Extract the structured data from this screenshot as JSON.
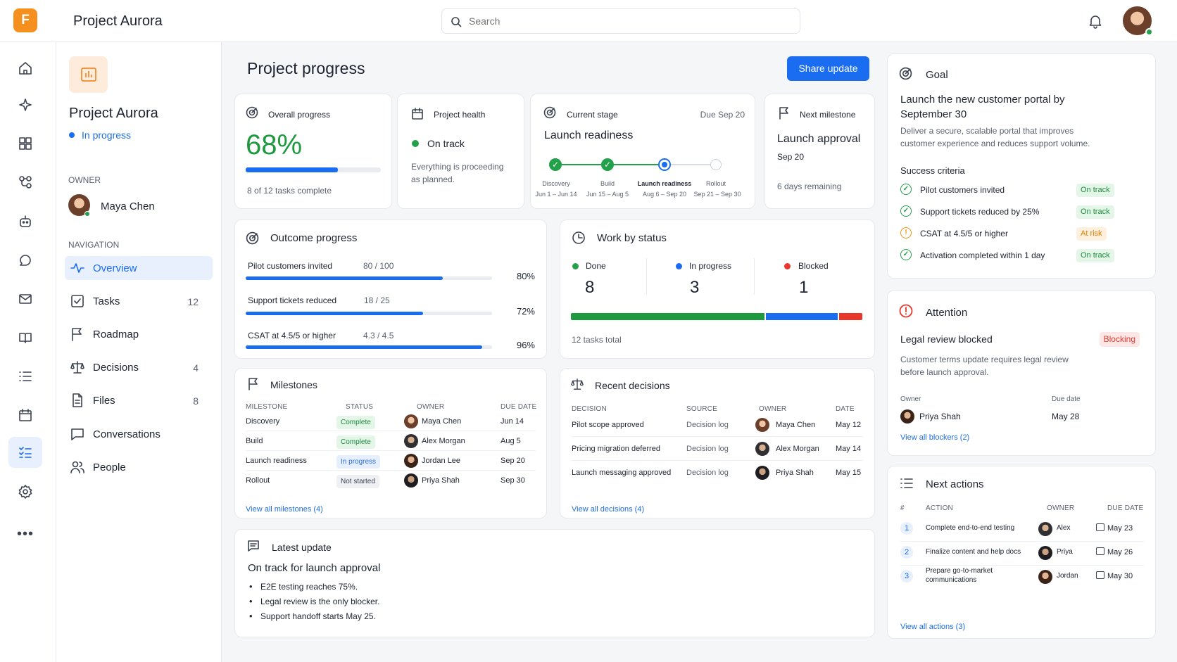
{
  "app": {
    "logo_letter": "F",
    "title": "Project Aurora",
    "accent": "#1a6df0",
    "logo_color": "#f5901e"
  },
  "search": {
    "placeholder": "Search"
  },
  "rail": [
    "home-icon",
    "sparkle-icon",
    "apps-icon",
    "flow-icon",
    "bot-icon",
    "chat-icon",
    "mail-icon",
    "book-icon",
    "list-icon",
    "calendar-icon",
    "checklist-icon",
    "settings-icon",
    "more-icon"
  ],
  "project": {
    "name": "Project Aurora",
    "status": "In progress",
    "owner_label": "OWNER",
    "owner": "Maya Chen",
    "nav_label": "NAVIGATION"
  },
  "nav": [
    {
      "label": "Overview",
      "count": "",
      "icon": "activity-icon"
    },
    {
      "label": "Tasks",
      "count": "12",
      "icon": "checkbox-icon"
    },
    {
      "label": "Roadmap",
      "count": "",
      "icon": "flag-icon"
    },
    {
      "label": "Decisions",
      "count": "4",
      "icon": "scale-icon"
    },
    {
      "label": "Files",
      "count": "8",
      "icon": "file-icon"
    },
    {
      "label": "Conversations",
      "count": "",
      "icon": "chat-icon"
    },
    {
      "label": "People",
      "count": "",
      "icon": "people-icon"
    }
  ],
  "main": {
    "title": "Project progress",
    "share": "Share update"
  },
  "overall": {
    "label": "Overall progress",
    "value": "68%",
    "progress": 0.68,
    "sub": "8 of 12 tasks complete"
  },
  "health": {
    "label": "Project health",
    "status": "On track",
    "desc1": "Everything is proceeding",
    "desc2": "as planned."
  },
  "stage": {
    "label": "Current stage",
    "due": "Due Sep 20",
    "name": "Launch readiness",
    "steps": [
      {
        "name": "Discovery",
        "dates": "Jun 1 – Jun 14"
      },
      {
        "name": "Build",
        "dates": "Jun 15 – Aug 5"
      },
      {
        "name": "Launch readiness",
        "dates": "Aug 6 – Sep 20"
      },
      {
        "name": "Rollout",
        "dates": "Sep 21 – Sep 30"
      }
    ]
  },
  "milestone": {
    "label": "Next milestone",
    "name": "Launch approval",
    "date": "Sep 20",
    "remaining": "6 days remaining"
  },
  "outcome": {
    "title": "Outcome progress",
    "items": [
      {
        "label": "Pilot customers invited",
        "ratio": "80 / 100",
        "pct": "80%",
        "progress": 0.8
      },
      {
        "label": "Support tickets reduced",
        "ratio": "18 / 25",
        "pct": "72%",
        "progress": 0.72
      },
      {
        "label": "CSAT at 4.5/5 or higher",
        "ratio": "4.3 / 4.5",
        "pct": "96%",
        "progress": 0.96
      }
    ]
  },
  "work": {
    "title": "Work by status",
    "done_label": "Done",
    "done": "8",
    "inprog_label": "In progress",
    "inprog": "3",
    "blocked_label": "Blocked",
    "blocked": "1",
    "total": "12 tasks total"
  },
  "milestones": {
    "title": "Milestones",
    "h": [
      "MILESTONE",
      "STATUS",
      "OWNER",
      "DUE DATE"
    ],
    "rows": [
      {
        "name": "Discovery",
        "status": "Complete",
        "owner": "Maya Chen",
        "due": "Jun 14"
      },
      {
        "name": "Build",
        "status": "Complete",
        "owner": "Alex Morgan",
        "due": "Aug 5"
      },
      {
        "name": "Launch readiness",
        "status": "In progress",
        "owner": "Jordan Lee",
        "due": "Sep 20"
      },
      {
        "name": "Rollout",
        "status": "Not started",
        "owner": "Priya Shah",
        "due": "Sep 30"
      }
    ],
    "link": "View all milestones (4)"
  },
  "decisions": {
    "title": "Recent decisions",
    "h": [
      "DECISION",
      "SOURCE",
      "OWNER",
      "DATE"
    ],
    "rows": [
      {
        "name": "Pilot scope approved",
        "source": "Decision log",
        "owner": "Maya Chen",
        "date": "May 12"
      },
      {
        "name": "Pricing migration deferred",
        "source": "Decision log",
        "owner": "Alex Morgan",
        "date": "May 14"
      },
      {
        "name": "Launch messaging approved",
        "source": "Decision log",
        "owner": "Priya Shah",
        "date": "May 15"
      }
    ],
    "link": "View all decisions (4)"
  },
  "update": {
    "title": "Latest update",
    "headline": "On track for launch approval",
    "bullets": [
      "E2E testing reaches 75%.",
      "Legal review is the only blocker.",
      "Support handoff starts May 25."
    ]
  },
  "goal": {
    "title": "Goal",
    "headline1": "Launch the new customer portal by",
    "headline2": "September 30",
    "desc1": "Deliver a secure, scalable portal that improves",
    "desc2": "customer experience and reduces support volume.",
    "criteria_label": "Success criteria",
    "criteria": [
      {
        "label": "Pilot customers invited",
        "status": "On track"
      },
      {
        "label": "Support tickets reduced by 25%",
        "status": "On track"
      },
      {
        "label": "CSAT at 4.5/5 or higher",
        "status": "At risk"
      },
      {
        "label": "Activation completed within 1 day",
        "status": "On track"
      }
    ]
  },
  "attention": {
    "title": "Attention",
    "item": "Legal review blocked",
    "badge": "Blocking",
    "desc1": "Customer terms update requires legal review",
    "desc2": "before launch approval.",
    "owner_label": "Owner",
    "owner": "Priya Shah",
    "due_label": "Due date",
    "due": "May 28",
    "link": "View all blockers (2)"
  },
  "actions": {
    "title": "Next actions",
    "h": [
      "#",
      "ACTION",
      "OWNER",
      "DUE DATE"
    ],
    "rows": [
      {
        "n": "1",
        "action": "Complete end-to-end testing",
        "action2": "",
        "owner": "Alex",
        "due": "May 23"
      },
      {
        "n": "2",
        "action": "Finalize content and help docs",
        "action2": "",
        "owner": "Priya",
        "due": "May 26"
      },
      {
        "n": "3",
        "action": "Prepare go-to-market",
        "action2": "communications",
        "owner": "Jordan",
        "due": "May 30"
      }
    ],
    "link": "View all actions (3)"
  }
}
